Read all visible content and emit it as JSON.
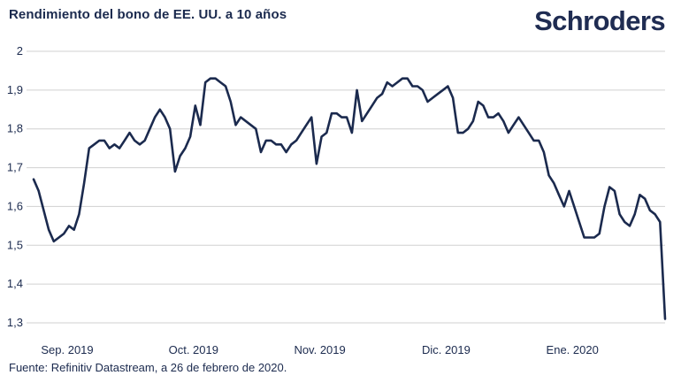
{
  "header": {
    "title": "Rendimiento del bono de EE. UU. a 10 años",
    "logo_text": "Schroders"
  },
  "footer": {
    "source": "Fuente: Refinitiv Datastream, a 26 de febrero de 2020."
  },
  "colors": {
    "line": "#1b2a4e",
    "grid": "#d0d0d0",
    "text": "#1b2a4e"
  },
  "chart_data": {
    "type": "line",
    "title": "Rendimiento del bono de EE. UU. a 10 años",
    "xlabel": "",
    "ylabel": "",
    "ylim": [
      1.3,
      2.0
    ],
    "xlim": [
      0,
      125
    ],
    "y_ticks": [
      2.0,
      1.9,
      1.8,
      1.7,
      1.6,
      1.5,
      1.4,
      1.3
    ],
    "y_tick_labels": [
      "2",
      "1,9",
      "1,8",
      "1,7",
      "1,6",
      "1,5",
      "1,4",
      "1,3"
    ],
    "x_tick_positions": [
      0,
      25,
      50,
      75,
      100
    ],
    "x_tick_labels": [
      "Sep. 2019",
      "Oct. 2019",
      "Nov. 2019",
      "Dic. 2019",
      "Ene. 2020"
    ],
    "grid": true,
    "series": [
      {
        "name": "Rendimiento del bono de EE. UU. a 10 años",
        "x": [
          0,
          1,
          2,
          3,
          4,
          5,
          6,
          7,
          8,
          9,
          10,
          11,
          12,
          13,
          14,
          15,
          16,
          17,
          18,
          19,
          20,
          21,
          22,
          23,
          24,
          25,
          26,
          27,
          28,
          29,
          30,
          31,
          32,
          33,
          34,
          35,
          36,
          37,
          38,
          39,
          40,
          41,
          42,
          43,
          44,
          45,
          46,
          47,
          48,
          49,
          50,
          51,
          52,
          53,
          54,
          55,
          56,
          57,
          58,
          59,
          60,
          61,
          62,
          63,
          64,
          65,
          66,
          67,
          68,
          69,
          70,
          71,
          72,
          73,
          74,
          75,
          76,
          77,
          78,
          79,
          80,
          81,
          82,
          83,
          84,
          85,
          86,
          87,
          88,
          89,
          90,
          91,
          92,
          93,
          94,
          95,
          96,
          97,
          98,
          99,
          100,
          101,
          102,
          103,
          104,
          105,
          106,
          107,
          108,
          109,
          110,
          111,
          112,
          113,
          114,
          115,
          116,
          117,
          118,
          119,
          120,
          121,
          122,
          123,
          124,
          125
        ],
        "values": [
          1.67,
          1.64,
          1.59,
          1.54,
          1.51,
          1.52,
          1.53,
          1.55,
          1.54,
          1.58,
          1.66,
          1.75,
          1.76,
          1.77,
          1.77,
          1.75,
          1.76,
          1.75,
          1.77,
          1.79,
          1.77,
          1.76,
          1.77,
          1.8,
          1.83,
          1.85,
          1.83,
          1.8,
          1.69,
          1.73,
          1.75,
          1.78,
          1.86,
          1.81,
          1.92,
          1.93,
          1.93,
          1.92,
          1.91,
          1.87,
          1.81,
          1.83,
          1.82,
          1.81,
          1.8,
          1.74,
          1.77,
          1.77,
          1.76,
          1.76,
          1.74,
          1.76,
          1.77,
          1.79,
          1.81,
          1.83,
          1.71,
          1.78,
          1.79,
          1.84,
          1.84,
          1.83,
          1.83,
          1.79,
          1.9,
          1.82,
          1.84,
          1.86,
          1.88,
          1.89,
          1.92,
          1.91,
          1.92,
          1.93,
          1.93,
          1.91,
          1.91,
          1.9,
          1.87,
          1.88,
          1.89,
          1.9,
          1.91,
          1.88,
          1.79,
          1.79,
          1.8,
          1.82,
          1.87,
          1.86,
          1.83,
          1.83,
          1.84,
          1.82,
          1.79,
          1.81,
          1.83,
          1.81,
          1.79,
          1.77,
          1.77,
          1.74,
          1.68,
          1.66,
          1.63,
          1.6,
          1.64,
          1.6,
          1.56,
          1.52,
          1.52,
          1.52,
          1.53,
          1.6,
          1.65,
          1.64,
          1.58,
          1.56,
          1.55,
          1.58,
          1.63,
          1.62,
          1.59,
          1.58,
          1.56,
          1.31
        ]
      }
    ]
  }
}
